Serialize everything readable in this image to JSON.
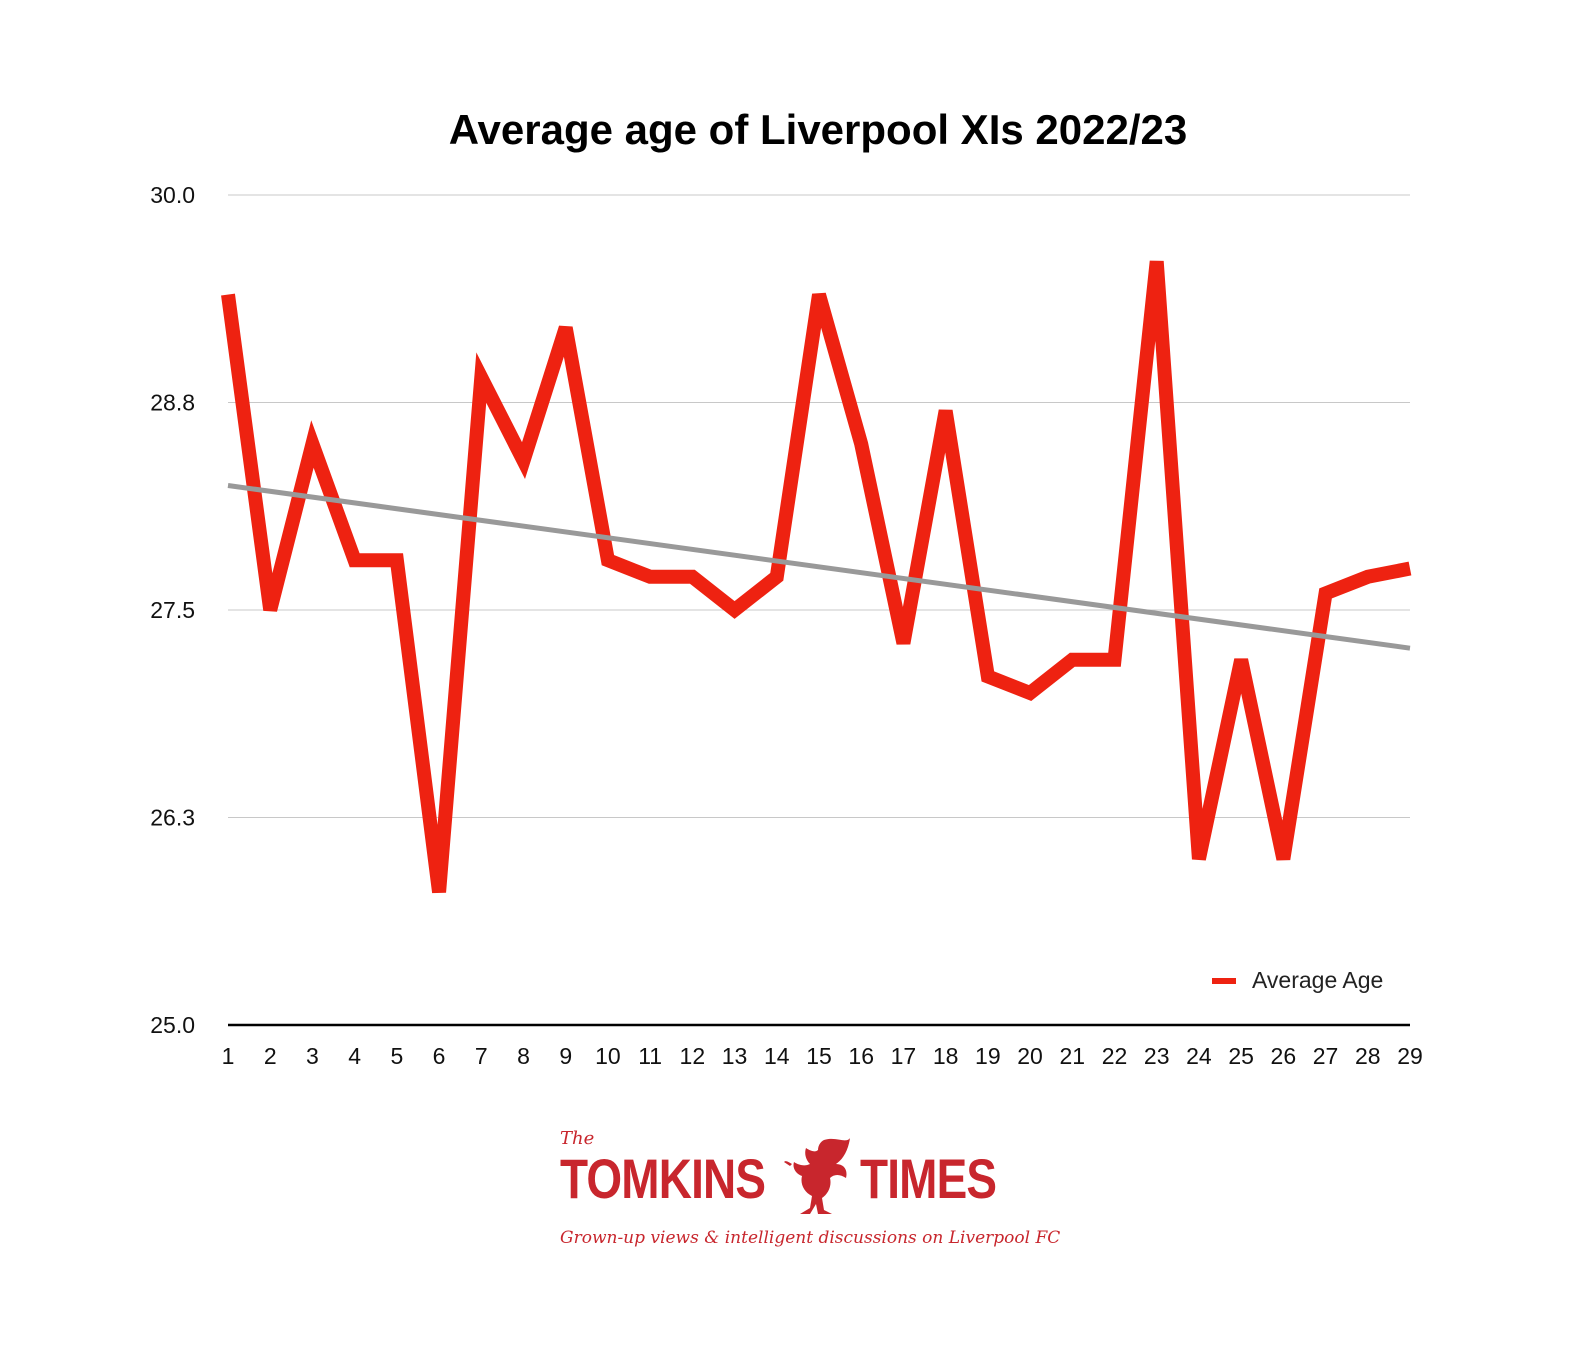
{
  "chart_data": {
    "type": "line",
    "title": "Average age of Liverpool XIs 2022/23",
    "xlabel": "",
    "ylabel": "",
    "x": [
      1,
      2,
      3,
      4,
      5,
      6,
      7,
      8,
      9,
      10,
      11,
      12,
      13,
      14,
      15,
      16,
      17,
      18,
      19,
      20,
      21,
      22,
      23,
      24,
      25,
      26,
      27,
      28,
      29
    ],
    "ylim": [
      25.0,
      30.0
    ],
    "yticks": [
      "25.0",
      "26.3",
      "27.5",
      "28.8",
      "30.0"
    ],
    "ytick_values": [
      25.0,
      26.25,
      27.5,
      28.75,
      30.0
    ],
    "grid": true,
    "legend": "bottom-right",
    "series": [
      {
        "name": "Average Age",
        "color": "#ee2211",
        "values": [
          29.4,
          27.5,
          28.5,
          27.8,
          27.8,
          25.8,
          28.9,
          28.4,
          29.2,
          27.8,
          27.7,
          27.7,
          27.5,
          27.7,
          29.4,
          28.5,
          27.3,
          28.7,
          27.1,
          27.0,
          27.2,
          27.2,
          29.6,
          26.0,
          27.2,
          26.0,
          27.6,
          27.7,
          27.75
        ]
      }
    ],
    "trendline": {
      "color": "#999999",
      "start": 28.25,
      "end": 27.27
    }
  },
  "logo": {
    "the": "The",
    "word1": "TOMKINS",
    "word2": "TIMES",
    "tagline": "Grown-up views & intelligent discussions on Liverpool FC",
    "color": "#c8262d",
    "emblem": "liverbird-icon"
  }
}
